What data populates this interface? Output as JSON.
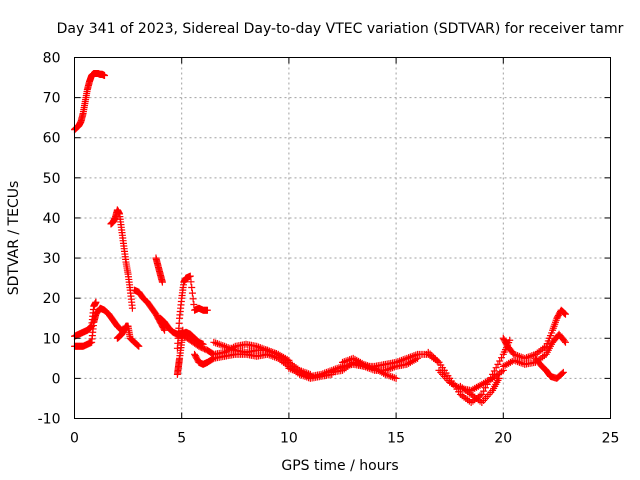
{
  "chart_data": {
    "type": "scatter",
    "title": "Day 341 of 2023, Sidereal Day-to-day VTEC variation (SDTVAR) for receiver tamr",
    "xlabel": "GPS time / hours",
    "ylabel": "SDTVAR / TECUs",
    "xlim": [
      0,
      25
    ],
    "ylim": [
      -10,
      80
    ],
    "xticks": [
      "0",
      "5",
      "10",
      "15",
      "20",
      "25"
    ],
    "xtick_values": [
      0,
      5,
      10,
      15,
      20,
      25
    ],
    "yticks": [
      "-10",
      "0",
      "10",
      "20",
      "30",
      "40",
      "50",
      "60",
      "70",
      "80"
    ],
    "ytick_values": [
      -10,
      0,
      10,
      20,
      30,
      40,
      50,
      60,
      70,
      80
    ],
    "grid": true,
    "marker": "+",
    "color": "#ff0000",
    "series": [
      {
        "name": "s1",
        "x": [
          0.0,
          0.1,
          0.2,
          0.3,
          0.4,
          0.5,
          0.6,
          0.7,
          0.8,
          0.9,
          1.0,
          1.1,
          1.2,
          1.3,
          1.4
        ],
        "y": [
          62,
          62.5,
          63,
          64,
          66,
          69,
          72,
          74,
          75.5,
          76,
          76,
          76,
          75.8,
          75.8,
          75.5
        ]
      },
      {
        "name": "s2",
        "x": [
          0.0,
          0.2,
          0.4,
          0.6,
          0.8,
          0.9,
          1.0,
          1.2,
          1.4,
          1.6,
          1.8,
          2.0,
          2.2
        ],
        "y": [
          8,
          8,
          8,
          8.5,
          9,
          14,
          16,
          17.5,
          17,
          16,
          14.5,
          13,
          12
        ]
      },
      {
        "name": "s3",
        "x": [
          0.0,
          0.2,
          0.4,
          0.6,
          0.7,
          0.8,
          0.9,
          1.0
        ],
        "y": [
          10.5,
          11,
          11.5,
          12,
          12.5,
          13,
          18,
          19
        ]
      },
      {
        "name": "s4",
        "x": [
          1.7,
          1.8,
          1.9,
          2.0,
          2.1,
          2.2,
          2.3,
          2.4,
          2.5,
          2.6,
          2.7
        ],
        "y": [
          38.5,
          39,
          40,
          42,
          41,
          37,
          33,
          29,
          26,
          22,
          17.5
        ]
      },
      {
        "name": "s5",
        "x": [
          2.0,
          2.1,
          2.2,
          2.3,
          2.4,
          2.5,
          2.6,
          2.8,
          3.0
        ],
        "y": [
          10,
          10.5,
          11,
          12,
          13,
          13,
          10,
          9,
          8
        ]
      },
      {
        "name": "s6",
        "x": [
          2.8,
          3.0,
          3.2,
          3.4,
          3.6,
          3.8,
          4.0,
          4.2
        ],
        "y": [
          22,
          21.5,
          20,
          19,
          17.5,
          16,
          14,
          12
        ]
      },
      {
        "name": "s7",
        "x": [
          3.8,
          3.9,
          4.0,
          4.1
        ],
        "y": [
          30,
          28,
          26,
          24
        ]
      },
      {
        "name": "s8",
        "x": [
          4.0,
          4.2,
          4.4,
          4.6,
          4.8,
          5.0,
          5.2,
          5.4,
          5.6,
          5.8,
          6.0
        ],
        "y": [
          15,
          14,
          12.5,
          11.5,
          11,
          11,
          11.5,
          11,
          10,
          9,
          8.5
        ]
      },
      {
        "name": "s9",
        "x": [
          4.8,
          4.9,
          5.0,
          5.1,
          5.2,
          5.4,
          5.6,
          5.8,
          6.0,
          6.2
        ],
        "y": [
          7.5,
          15,
          20,
          24,
          25,
          25.5,
          17,
          17.5,
          17,
          17
        ]
      },
      {
        "name": "s10",
        "x": [
          4.8,
          4.85,
          4.9,
          5.0,
          5.05
        ],
        "y": [
          1,
          3,
          5,
          9,
          12
        ]
      },
      {
        "name": "s11",
        "x": [
          5.0,
          5.4,
          5.8,
          6.2,
          6.5,
          7.0,
          7.5,
          8.0,
          8.5,
          9.0,
          9.5,
          10.0,
          10.5,
          11.0
        ],
        "y": [
          11,
          9.5,
          8,
          7,
          6,
          6.5,
          8,
          8.5,
          8,
          7,
          6,
          4,
          2,
          1
        ]
      },
      {
        "name": "s12",
        "x": [
          5.6,
          5.8,
          6.0,
          6.2,
          6.5,
          7.0,
          7.5,
          8.0,
          8.5,
          9.0,
          9.5,
          10.0,
          10.5,
          11.0,
          11.5,
          12.0
        ],
        "y": [
          6,
          4,
          3.5,
          4,
          5,
          5.5,
          6,
          6,
          5.5,
          6,
          5,
          3,
          1,
          0,
          0.5,
          1
        ]
      },
      {
        "name": "s13",
        "x": [
          6.5,
          7.0,
          7.5,
          8.0,
          8.5,
          9.0,
          9.5,
          10.0
        ],
        "y": [
          9,
          8,
          7,
          6.5,
          7,
          7,
          6,
          4.5
        ]
      },
      {
        "name": "s14",
        "x": [
          10.0,
          10.5,
          11.0,
          11.5,
          12.0,
          12.5,
          13.0,
          13.5,
          14.0,
          14.5,
          15.0,
          15.5,
          16.0,
          16.5,
          17.0
        ],
        "y": [
          2.5,
          1.5,
          0.5,
          1,
          2,
          3,
          3.5,
          3,
          3,
          3.5,
          4,
          5,
          6,
          6,
          4
        ]
      },
      {
        "name": "s15",
        "x": [
          12.0,
          12.5,
          13.0,
          13.5,
          14.0,
          14.5,
          15.0,
          15.5,
          16.0
        ],
        "y": [
          1.5,
          2,
          4,
          3,
          2,
          2,
          3,
          3.5,
          5
        ]
      },
      {
        "name": "s16",
        "x": [
          12.5,
          13.0,
          13.5,
          14.0,
          14.5,
          15.0
        ],
        "y": [
          4,
          5,
          3.5,
          2.5,
          1,
          0
        ]
      },
      {
        "name": "s17",
        "x": [
          16.5,
          17.0,
          17.5,
          18.0,
          18.5,
          19.0,
          19.5,
          20.0,
          20.3
        ],
        "y": [
          6.5,
          4,
          0,
          -4,
          -6,
          -4,
          1,
          6,
          9.5
        ]
      },
      {
        "name": "s18",
        "x": [
          17.0,
          17.5,
          18.0,
          18.5,
          19.0,
          19.5,
          20.0
        ],
        "y": [
          2,
          -1,
          -2.5,
          -3,
          -1.5,
          0,
          2
        ]
      },
      {
        "name": "s19",
        "x": [
          18.0,
          18.5,
          19.0,
          19.5,
          19.8
        ],
        "y": [
          -2,
          -4,
          -6,
          -3,
          0
        ]
      },
      {
        "name": "s20",
        "x": [
          20.0,
          20.5,
          21.0,
          21.5,
          22.0,
          22.3,
          22.6,
          22.9
        ],
        "y": [
          3,
          4.5,
          3.5,
          4,
          6,
          9,
          11,
          9
        ]
      },
      {
        "name": "s21",
        "x": [
          20.0,
          20.2,
          20.5,
          21.0,
          21.5,
          22.0,
          22.3,
          22.5,
          22.7,
          22.9
        ],
        "y": [
          10,
          8,
          6,
          5,
          6,
          8,
          12,
          15,
          17,
          16
        ]
      },
      {
        "name": "s22",
        "x": [
          21.5,
          21.8,
          22.0,
          22.2,
          22.5,
          22.8
        ],
        "y": [
          5,
          3,
          2,
          0.5,
          0,
          1.5
        ]
      }
    ]
  }
}
